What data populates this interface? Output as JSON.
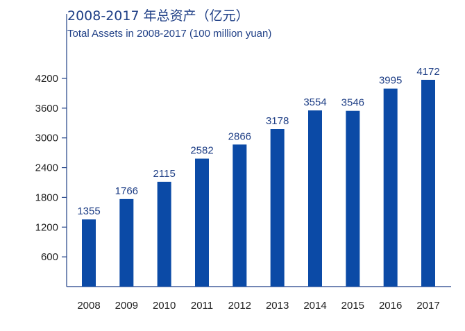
{
  "chart_data": {
    "type": "bar",
    "title": "2008-2017 年总资产（亿元）",
    "subtitle": "Total Assets in 2008-2017 (100 million yuan)",
    "xlabel": "",
    "ylabel": "",
    "categories": [
      "2008",
      "2009",
      "2010",
      "2011",
      "2012",
      "2013",
      "2014",
      "2015",
      "2016",
      "2017"
    ],
    "values": [
      1355,
      1766,
      2115,
      2582,
      2866,
      3178,
      3554,
      3546,
      3995,
      4172
    ],
    "yticks": [
      600,
      1200,
      1800,
      2400,
      3000,
      3600,
      4200
    ],
    "ylim": [
      0,
      4200
    ],
    "grid": false,
    "legend": "none",
    "bar_color": "#0b4aa6",
    "axis_color": "#1f3f86"
  }
}
